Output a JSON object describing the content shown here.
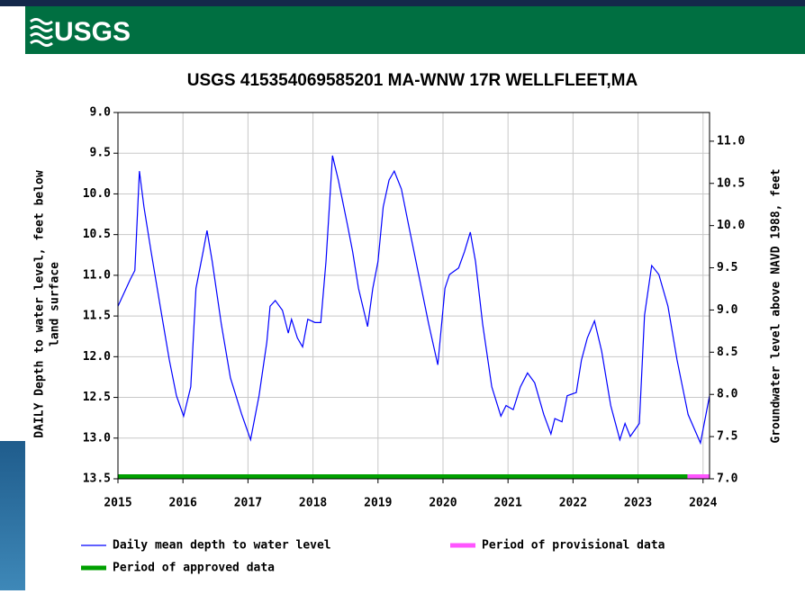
{
  "header": {
    "logo": "USGS"
  },
  "chart_data": {
    "type": "line",
    "title": "USGS 415354069585201 MA-WNW 17R WELLFLEET,MA",
    "ylabel": [
      "DAILY Depth to water level, feet below",
      "land surface"
    ],
    "y2label": "Groundwater level above NAVD 1988, feet",
    "y_inverted": true,
    "grid": true,
    "xlim": [
      2015,
      2024.1
    ],
    "xticks": [
      2015,
      2016,
      2017,
      2018,
      2019,
      2020,
      2021,
      2022,
      2023,
      2024
    ],
    "ylim": [
      9.0,
      13.5
    ],
    "yticks": [
      {
        "value": 9,
        "label": "9.0"
      },
      9.5,
      {
        "value": 10,
        "label": "10.0"
      },
      10.5,
      {
        "value": 11,
        "label": "11.0"
      },
      11.5,
      {
        "value": 12,
        "label": "12.0"
      },
      12.5,
      {
        "value": 13,
        "label": "13.0"
      },
      13.5
    ],
    "y2lim": [
      7.0,
      11.34
    ],
    "y2ticks": [
      {
        "value": 7,
        "label": "7.0"
      },
      7.5,
      {
        "value": 8,
        "label": "8.0"
      },
      8.5,
      {
        "value": 9,
        "label": "9.0"
      },
      9.5,
      {
        "value": 10,
        "label": "10.0"
      },
      10.5,
      {
        "value": 11,
        "label": "11.0"
      }
    ],
    "x": [
      2015.0,
      2015.19,
      2015.26,
      2015.33,
      2015.4,
      2015.51,
      2015.65,
      2015.79,
      2015.9,
      2016.01,
      2016.12,
      2016.2,
      2016.31,
      2016.37,
      2016.45,
      2016.59,
      2016.73,
      2016.9,
      2017.04,
      2017.17,
      2017.29,
      2017.34,
      2017.42,
      2017.53,
      2017.62,
      2017.67,
      2017.76,
      2017.84,
      2017.92,
      2018.03,
      2018.12,
      2018.2,
      2018.3,
      2018.39,
      2018.53,
      2018.61,
      2018.7,
      2018.84,
      2018.92,
      2019.0,
      2019.08,
      2019.17,
      2019.25,
      2019.36,
      2019.47,
      2019.64,
      2019.78,
      2019.92,
      2020.03,
      2020.1,
      2020.24,
      2020.33,
      2020.42,
      2020.5,
      2020.61,
      2020.75,
      2020.89,
      2020.97,
      2021.08,
      2021.19,
      2021.3,
      2021.41,
      2021.55,
      2021.66,
      2021.72,
      2021.83,
      2021.91,
      2022.05,
      2022.13,
      2022.22,
      2022.33,
      2022.44,
      2022.58,
      2022.72,
      2022.8,
      2022.88,
      2023.02,
      2023.1,
      2023.21,
      2023.32,
      2023.46,
      2023.6,
      2023.77,
      2023.96,
      2024.1
    ],
    "series": [
      {
        "name": "Daily mean depth to water level",
        "color": "#0000ff",
        "values": [
          11.38,
          11.05,
          10.94,
          9.72,
          10.16,
          10.71,
          11.38,
          12.04,
          12.48,
          12.73,
          12.37,
          11.16,
          10.71,
          10.45,
          10.83,
          11.6,
          12.26,
          12.7,
          13.02,
          12.48,
          11.82,
          11.38,
          11.31,
          11.43,
          11.71,
          11.54,
          11.77,
          11.88,
          11.54,
          11.58,
          11.58,
          10.83,
          9.53,
          9.83,
          10.38,
          10.71,
          11.16,
          11.63,
          11.16,
          10.83,
          10.16,
          9.83,
          9.72,
          9.94,
          10.38,
          11.05,
          11.6,
          12.1,
          11.16,
          10.99,
          10.91,
          10.71,
          10.47,
          10.83,
          11.6,
          12.37,
          12.73,
          12.6,
          12.65,
          12.37,
          12.2,
          12.32,
          12.71,
          12.95,
          12.76,
          12.8,
          12.48,
          12.44,
          12.04,
          11.77,
          11.56,
          11.93,
          12.6,
          13.02,
          12.82,
          12.98,
          12.82,
          11.49,
          10.88,
          10.99,
          11.38,
          12.04,
          12.71,
          13.06,
          12.48
        ]
      },
      {
        "name": "Period of provisional data",
        "color": "#ff55ff",
        "period": [
          2023.76,
          2024.1
        ]
      },
      {
        "name": "Period of approved data",
        "color": "#00a000",
        "period": [
          2015,
          2023.76
        ]
      }
    ]
  }
}
